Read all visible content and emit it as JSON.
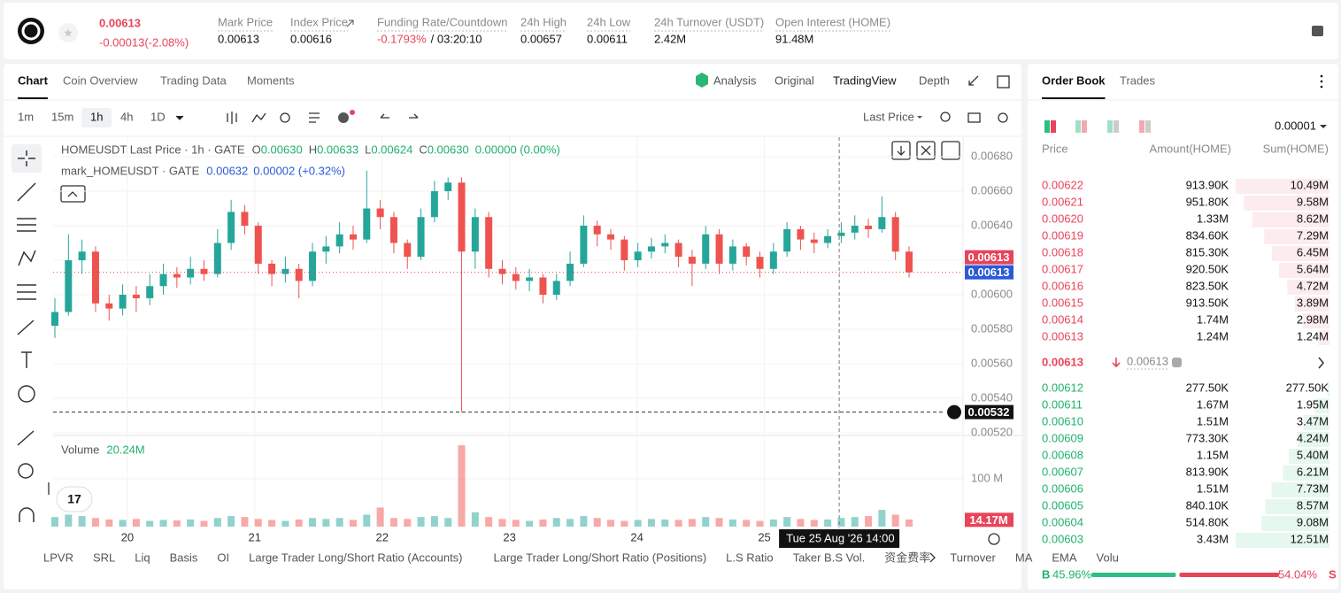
{
  "header": {
    "price": "0.00613",
    "change": "-0.00013(-2.08%)",
    "stats": [
      {
        "label": "Mark Price",
        "value": "0.00613"
      },
      {
        "label": "Index Price",
        "value": "0.00616"
      },
      {
        "label": "Funding Rate/Countdown",
        "value": "-0.1793%",
        "extra": "/ 03:20:10"
      },
      {
        "label": "24h High",
        "value": "0.00657"
      },
      {
        "label": "24h Low",
        "value": "0.00611"
      },
      {
        "label": "24h Turnover (USDT)",
        "value": "2.42M"
      },
      {
        "label": "Open Interest (HOME)",
        "value": "91.48M"
      }
    ]
  },
  "tabs": [
    "Chart",
    "Coin Overview",
    "Trading Data",
    "Moments"
  ],
  "views": [
    "Analysis",
    "Original",
    "TradingView",
    "Depth"
  ],
  "intervals": [
    "1m",
    "15m",
    "1h",
    "4h",
    "1D"
  ],
  "price_type": "Last Price",
  "chart_data": {
    "type": "candlestick",
    "title": "HOMEUSDT Last Price · 1h · GATE",
    "ohlc_legend": [
      {
        "label": "O",
        "value": "0.00630"
      },
      {
        "label": "H",
        "value": "0.00633"
      },
      {
        "label": "L",
        "value": "0.00624"
      },
      {
        "label": "C",
        "value": "0.00630"
      }
    ],
    "ohlc_change": "0.00000 (0.00%)",
    "mark_legend": "mark_HOMEUSDT · GATE",
    "mark_values": [
      "0.00632",
      "0.00002 (+0.32%)"
    ],
    "volume_title": "Volume",
    "volume_value": "20.24M",
    "open": [
      0.00582,
      0.0059,
      0.0062,
      0.00625,
      0.00595,
      0.00592,
      0.006,
      0.00598,
      0.00605,
      0.00612,
      0.0061,
      0.00615,
      0.00612,
      0.0063,
      0.00648,
      0.0064,
      0.00618,
      0.00612,
      0.00615,
      0.00608,
      0.00625,
      0.00628,
      0.00635,
      0.00632,
      0.0065,
      0.00645,
      0.0063,
      0.00622,
      0.00645,
      0.0066,
      0.00665,
      0.00625,
      0.00645,
      0.00615,
      0.00612,
      0.00608,
      0.0061,
      0.006,
      0.00608,
      0.00618,
      0.0064,
      0.00635,
      0.00632,
      0.0062,
      0.00625,
      0.00628,
      0.0063,
      0.00622,
      0.00618,
      0.00635,
      0.00618,
      0.00628,
      0.00622,
      0.00615,
      0.00625,
      0.00638,
      0.00632,
      0.0063,
      0.00634,
      0.00636,
      0.0064,
      0.00638,
      0.00645,
      0.00625
    ],
    "high": [
      0.00598,
      0.00635,
      0.00632,
      0.00628,
      0.006,
      0.00606,
      0.00605,
      0.00612,
      0.00618,
      0.00616,
      0.00622,
      0.0062,
      0.00638,
      0.00655,
      0.00652,
      0.00642,
      0.0062,
      0.00622,
      0.00618,
      0.0063,
      0.00634,
      0.00642,
      0.0064,
      0.00672,
      0.00655,
      0.00648,
      0.00632,
      0.0065,
      0.00666,
      0.00668,
      0.00668,
      0.0065,
      0.00648,
      0.0062,
      0.00616,
      0.00615,
      0.00612,
      0.00612,
      0.00625,
      0.00646,
      0.00643,
      0.00638,
      0.00634,
      0.0063,
      0.00633,
      0.00635,
      0.00632,
      0.00626,
      0.0064,
      0.00638,
      0.00632,
      0.0063,
      0.00625,
      0.0063,
      0.00642,
      0.0064,
      0.00636,
      0.00638,
      0.00642,
      0.00646,
      0.00644,
      0.00657,
      0.00648,
      0.00628
    ],
    "low": [
      0.00575,
      0.00588,
      0.00612,
      0.0059,
      0.00585,
      0.00588,
      0.0059,
      0.00594,
      0.006,
      0.00604,
      0.00606,
      0.00608,
      0.0061,
      0.00626,
      0.00635,
      0.00612,
      0.00605,
      0.00607,
      0.00598,
      0.00605,
      0.00618,
      0.00624,
      0.00626,
      0.0063,
      0.00638,
      0.00624,
      0.00615,
      0.0062,
      0.00642,
      0.00655,
      0.00532,
      0.00615,
      0.0061,
      0.00606,
      0.00603,
      0.00602,
      0.00595,
      0.00597,
      0.00605,
      0.00616,
      0.00628,
      0.00626,
      0.00614,
      0.00616,
      0.00621,
      0.00624,
      0.00616,
      0.00605,
      0.00615,
      0.00612,
      0.00614,
      0.00617,
      0.0061,
      0.00612,
      0.00622,
      0.00626,
      0.00624,
      0.00627,
      0.0063,
      0.00632,
      0.00633,
      0.00636,
      0.0062,
      0.0061
    ],
    "close": [
      0.0059,
      0.0062,
      0.00625,
      0.00595,
      0.00592,
      0.006,
      0.00598,
      0.00605,
      0.00612,
      0.0061,
      0.00615,
      0.00612,
      0.0063,
      0.00648,
      0.0064,
      0.00618,
      0.00612,
      0.00615,
      0.00608,
      0.00625,
      0.00628,
      0.00635,
      0.00632,
      0.0065,
      0.00645,
      0.0063,
      0.00622,
      0.00645,
      0.0066,
      0.00665,
      0.00625,
      0.00645,
      0.00615,
      0.00612,
      0.00608,
      0.0061,
      0.006,
      0.00608,
      0.00618,
      0.0064,
      0.00635,
      0.00632,
      0.0062,
      0.00625,
      0.00628,
      0.0063,
      0.00622,
      0.00618,
      0.00635,
      0.00618,
      0.00628,
      0.00622,
      0.00615,
      0.00625,
      0.00638,
      0.00632,
      0.0063,
      0.00634,
      0.00636,
      0.0064,
      0.00638,
      0.00645,
      0.00625,
      0.00613
    ],
    "volume": [
      20,
      25,
      22,
      18,
      15,
      14,
      16,
      12,
      14,
      13,
      15,
      12,
      18,
      22,
      20,
      16,
      14,
      12,
      15,
      18,
      16,
      18,
      14,
      25,
      40,
      18,
      16,
      20,
      22,
      18,
      170,
      30,
      20,
      16,
      14,
      12,
      15,
      18,
      16,
      22,
      18,
      14,
      12,
      14,
      16,
      15,
      14,
      16,
      20,
      18,
      15,
      14,
      12,
      15,
      20,
      16,
      14,
      15,
      18,
      20,
      22,
      35,
      25,
      15
    ],
    "green": "#26a69a",
    "red": "#ef5350",
    "xlim": [
      0,
      63
    ],
    "xticks": [
      {
        "value": 5.35,
        "label": "20"
      },
      {
        "value": 14.74,
        "label": "21"
      },
      {
        "value": 24.14,
        "label": "22"
      },
      {
        "value": 33.53,
        "label": "23"
      },
      {
        "value": 42.93,
        "label": "24"
      },
      {
        "value": 52.33,
        "label": "25"
      }
    ],
    "ylim": [
      0.0052,
      0.006913
    ],
    "yticks": [
      {
        "value": 0.0052,
        "label": "0.00520"
      },
      {
        "value": 0.0054,
        "label": "0.00540"
      },
      {
        "value": 0.0056,
        "label": "0.00560"
      },
      {
        "value": 0.0058,
        "label": "0.00580"
      },
      {
        "value": 0.006,
        "label": "0.00600"
      },
      {
        "value": 0.0062,
        "label": "0.00620"
      },
      {
        "value": 0.0064,
        "label": "0.00640"
      },
      {
        "value": 0.0066,
        "label": "0.00660"
      },
      {
        "value": 0.0068,
        "label": "0.00680"
      }
    ],
    "volume_ylim": [
      0,
      185
    ],
    "volume_yticks": [
      {
        "value": 100,
        "label": "100 M"
      }
    ],
    "last_price_tag": {
      "value": 0.00613,
      "label": "0.00613"
    },
    "mark_price_tag": {
      "value": 0.00613,
      "label": "0.00613"
    },
    "low_tag": {
      "value": 0.00532,
      "label": "0.00532"
    },
    "volume_tag": {
      "value": 14.17,
      "label": "14.17M"
    },
    "crosshair": {
      "value": 57.85,
      "label": "Tue 25 Aug '26"
    },
    "crosshair_hour": "14:00",
    "grid": true
  },
  "indicators": [
    "LPVR",
    "SRL",
    "Liq",
    "Basis",
    "OI",
    "Large Trader Long/Short Ratio (Accounts)",
    "Large Trader Long/Short Ratio (Positions)",
    "L.S Ratio",
    "Taker B.S Vol.",
    "资金费率",
    "Turnover",
    "MA",
    "EMA",
    "Volu"
  ],
  "order_book": {
    "tabs": [
      "Order Book",
      "Trades"
    ],
    "precision": "0.00001",
    "columns": [
      "Price",
      "Amount(HOME)",
      "Sum(HOME)"
    ],
    "asks": [
      [
        "0.00622",
        "913.90K",
        "10.49M"
      ],
      [
        "0.00621",
        "951.80K",
        "9.58M"
      ],
      [
        "0.00620",
        "1.33M",
        "8.62M"
      ],
      [
        "0.00619",
        "834.60K",
        "7.29M"
      ],
      [
        "0.00618",
        "815.30K",
        "6.45M"
      ],
      [
        "0.00617",
        "920.50K",
        "5.64M"
      ],
      [
        "0.00616",
        "823.50K",
        "4.72M"
      ],
      [
        "0.00615",
        "913.50K",
        "3.89M"
      ],
      [
        "0.00614",
        "1.74M",
        "2.98M"
      ],
      [
        "0.00613",
        "1.24M",
        "1.24M"
      ]
    ],
    "mid_price": "0.00613",
    "mid_mark": "0.00613",
    "bids": [
      [
        "0.00612",
        "277.50K",
        "277.50K"
      ],
      [
        "0.00611",
        "1.67M",
        "1.95M"
      ],
      [
        "0.00610",
        "1.51M",
        "3.47M"
      ],
      [
        "0.00609",
        "773.30K",
        "4.24M"
      ],
      [
        "0.00608",
        "1.15M",
        "5.40M"
      ],
      [
        "0.00607",
        "813.90K",
        "6.21M"
      ],
      [
        "0.00606",
        "1.51M",
        "7.73M"
      ],
      [
        "0.00605",
        "840.10K",
        "8.57M"
      ],
      [
        "0.00604",
        "514.80K",
        "9.08M"
      ],
      [
        "0.00603",
        "3.43M",
        "12.51M"
      ]
    ],
    "buy_letter": "B",
    "sell_letter": "S",
    "buy": {
      "value": 45.96,
      "label": "45.96%"
    },
    "sell": {
      "value": 54.04,
      "label": "54.04%"
    }
  }
}
